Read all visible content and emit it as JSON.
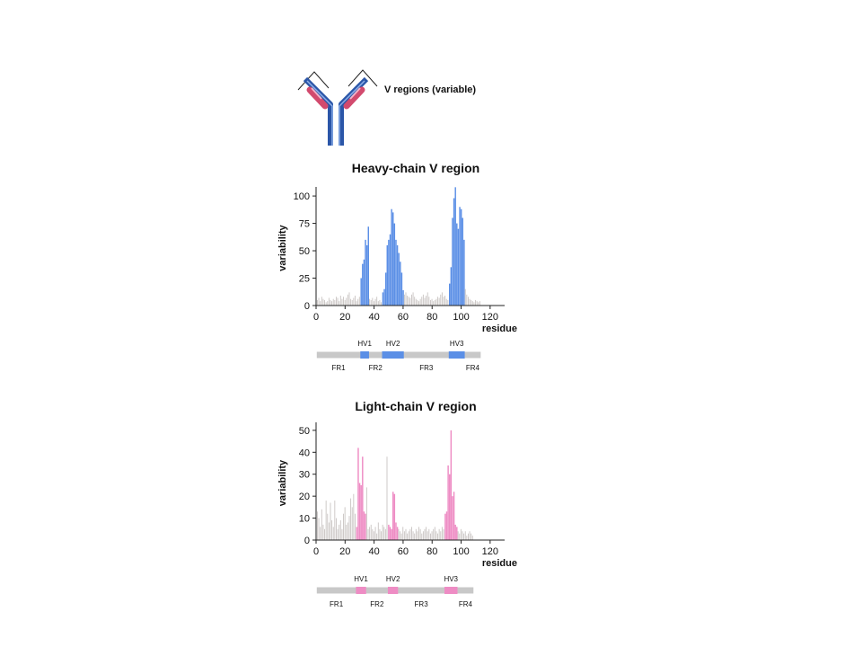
{
  "callout": {
    "label": "V regions (variable)"
  },
  "colors": {
    "heavy": "#5b8fe6",
    "light": "#ee8cc4",
    "background_bar": "#c8c3c1",
    "region_track": "#c8c8c8",
    "antibody_heavy": "#2b56a8",
    "antibody_light": "#d24a6e"
  },
  "chart_data": [
    {
      "type": "bar",
      "title": "Heavy-chain V region",
      "xlabel": "residue",
      "ylabel": "variability",
      "xlim": [
        0,
        130
      ],
      "ylim": [
        0,
        105
      ],
      "xticks": [
        0,
        20,
        40,
        60,
        80,
        100,
        120
      ],
      "yticks": [
        0,
        25,
        50,
        75,
        100
      ],
      "x": [
        1,
        2,
        3,
        4,
        5,
        6,
        7,
        8,
        9,
        10,
        11,
        12,
        13,
        14,
        15,
        16,
        17,
        18,
        19,
        20,
        21,
        22,
        23,
        24,
        25,
        26,
        27,
        28,
        29,
        30,
        31,
        32,
        33,
        34,
        35,
        36,
        37,
        38,
        39,
        40,
        41,
        42,
        43,
        44,
        45,
        46,
        47,
        48,
        49,
        50,
        51,
        52,
        53,
        54,
        55,
        56,
        57,
        58,
        59,
        60,
        61,
        62,
        63,
        64,
        65,
        66,
        67,
        68,
        69,
        70,
        71,
        72,
        73,
        74,
        75,
        76,
        77,
        78,
        79,
        80,
        81,
        82,
        83,
        84,
        85,
        86,
        87,
        88,
        89,
        90,
        91,
        92,
        93,
        94,
        95,
        96,
        97,
        98,
        99,
        100,
        101,
        102,
        103,
        104,
        105,
        106,
        107,
        108,
        109,
        110,
        111,
        112,
        113
      ],
      "values": [
        5,
        7,
        4,
        8,
        6,
        5,
        3,
        4,
        7,
        5,
        4,
        6,
        5,
        8,
        7,
        4,
        9,
        6,
        8,
        5,
        7,
        10,
        12,
        6,
        5,
        7,
        9,
        4,
        6,
        8,
        25,
        38,
        42,
        60,
        55,
        72,
        6,
        5,
        7,
        4,
        6,
        8,
        4,
        5,
        3,
        12,
        15,
        30,
        55,
        60,
        65,
        88,
        85,
        75,
        60,
        55,
        48,
        40,
        30,
        14,
        10,
        12,
        9,
        8,
        7,
        10,
        12,
        8,
        6,
        5,
        4,
        6,
        8,
        10,
        7,
        9,
        12,
        8,
        5,
        6,
        4,
        5,
        6,
        8,
        7,
        10,
        12,
        8,
        9,
        6,
        5,
        20,
        35,
        80,
        98,
        108,
        75,
        70,
        90,
        88,
        80,
        60,
        15,
        10,
        8,
        6,
        5,
        4,
        3,
        5,
        4,
        3,
        4
      ],
      "highlight_ranges": [
        [
          31,
          36
        ],
        [
          46,
          60
        ],
        [
          92,
          102
        ]
      ],
      "regions": [
        {
          "label": "FR1",
          "type": "FR"
        },
        {
          "label": "HV1",
          "type": "HV"
        },
        {
          "label": "FR2",
          "type": "FR"
        },
        {
          "label": "HV2",
          "type": "HV"
        },
        {
          "label": "FR3",
          "type": "FR"
        },
        {
          "label": "HV3",
          "type": "HV"
        },
        {
          "label": "FR4",
          "type": "FR"
        }
      ],
      "region_spans": [
        [
          1,
          30
        ],
        [
          31,
          36
        ],
        [
          37,
          45
        ],
        [
          46,
          60
        ],
        [
          61,
          91
        ],
        [
          92,
          102
        ],
        [
          103,
          113
        ]
      ]
    },
    {
      "type": "bar",
      "title": "Light-chain V region",
      "xlabel": "residue",
      "ylabel": "variability",
      "xlim": [
        0,
        130
      ],
      "ylim": [
        0,
        52
      ],
      "xticks": [
        0,
        20,
        40,
        60,
        80,
        100,
        120
      ],
      "yticks": [
        0,
        10,
        20,
        30,
        40,
        50
      ],
      "x": [
        1,
        2,
        3,
        4,
        5,
        6,
        7,
        8,
        9,
        10,
        11,
        12,
        13,
        14,
        15,
        16,
        17,
        18,
        19,
        20,
        21,
        22,
        23,
        24,
        25,
        26,
        27,
        28,
        29,
        30,
        31,
        32,
        33,
        34,
        35,
        36,
        37,
        38,
        39,
        40,
        41,
        42,
        43,
        44,
        45,
        46,
        47,
        48,
        49,
        50,
        51,
        52,
        53,
        54,
        55,
        56,
        57,
        58,
        59,
        60,
        61,
        62,
        63,
        64,
        65,
        66,
        67,
        68,
        69,
        70,
        71,
        72,
        73,
        74,
        75,
        76,
        77,
        78,
        79,
        80,
        81,
        82,
        83,
        84,
        85,
        86,
        87,
        88,
        89,
        90,
        91,
        92,
        93,
        94,
        95,
        96,
        97,
        98,
        99,
        100,
        101,
        102,
        103,
        104,
        105,
        106,
        107,
        108
      ],
      "values": [
        13,
        10,
        6,
        14,
        7,
        5,
        18,
        12,
        8,
        17,
        9,
        6,
        18,
        10,
        5,
        7,
        9,
        5,
        12,
        15,
        7,
        8,
        11,
        19,
        15,
        21,
        12,
        6,
        42,
        26,
        25,
        38,
        13,
        12,
        24,
        5,
        6,
        7,
        5,
        4,
        6,
        3,
        8,
        5,
        4,
        7,
        6,
        5,
        38,
        7,
        6,
        5,
        22,
        21,
        8,
        6,
        5,
        4,
        3,
        6,
        4,
        5,
        3,
        4,
        5,
        6,
        4,
        3,
        5,
        4,
        6,
        5,
        3,
        4,
        5,
        6,
        4,
        5,
        3,
        4,
        5,
        6,
        4,
        3,
        5,
        4,
        6,
        5,
        12,
        13,
        34,
        30,
        50,
        20,
        22,
        7,
        6,
        4,
        3,
        5,
        4,
        3,
        4,
        2,
        3,
        4,
        3,
        2
      ],
      "highlight_ranges": [
        [
          28,
          34
        ],
        [
          50,
          56
        ],
        [
          89,
          97
        ]
      ],
      "regions": [
        {
          "label": "FR1",
          "type": "FR"
        },
        {
          "label": "HV1",
          "type": "HV"
        },
        {
          "label": "FR2",
          "type": "FR"
        },
        {
          "label": "HV2",
          "type": "HV"
        },
        {
          "label": "FR3",
          "type": "FR"
        },
        {
          "label": "HV3",
          "type": "HV"
        },
        {
          "label": "FR4",
          "type": "FR"
        }
      ],
      "region_spans": [
        [
          1,
          27
        ],
        [
          28,
          34
        ],
        [
          35,
          49
        ],
        [
          50,
          56
        ],
        [
          57,
          88
        ],
        [
          89,
          97
        ],
        [
          98,
          108
        ]
      ]
    }
  ]
}
